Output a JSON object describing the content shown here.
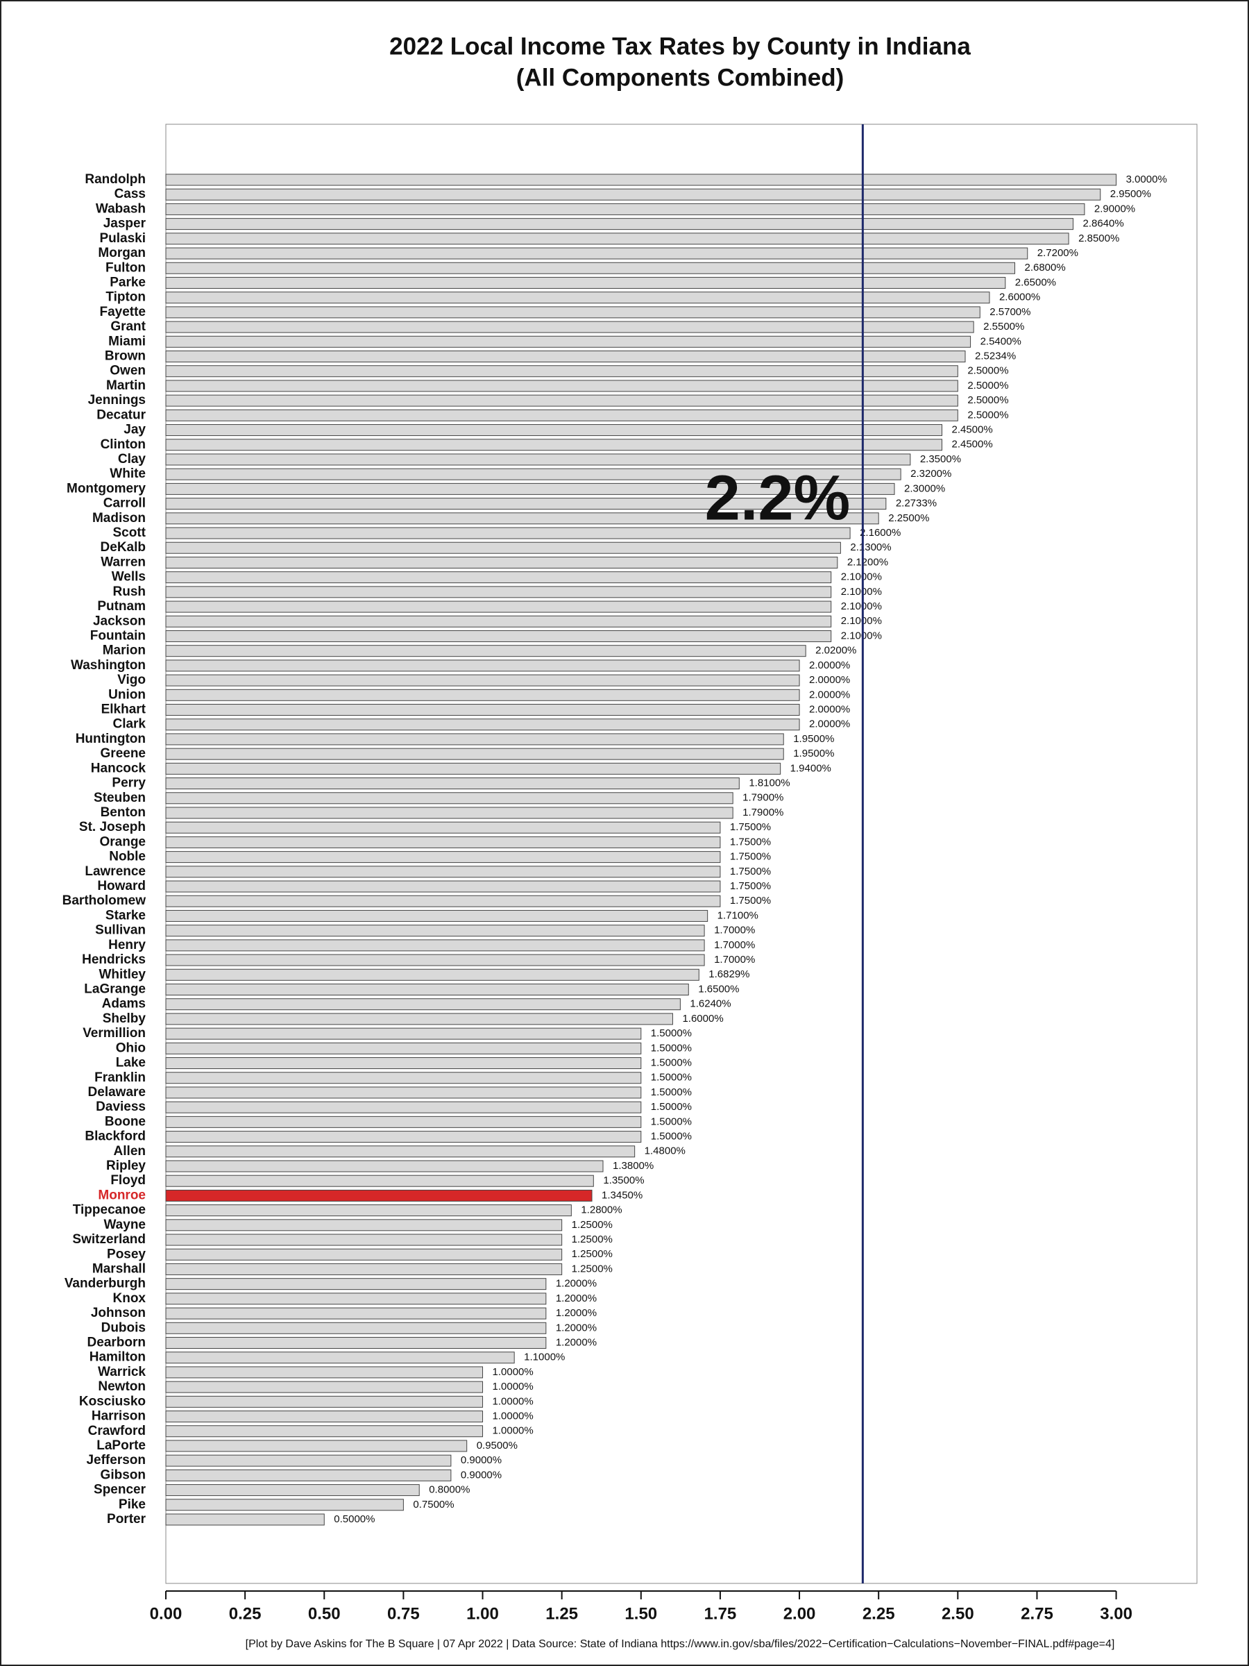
{
  "chart_data": {
    "type": "barh",
    "title": "2022 Local Income Tax Rates by County in Indiana",
    "subtitle": "(All Components Combined)",
    "footer": "[Plot by Dave Askins for The B Square | 07 Apr 2022 | Data Source: State of Indiana https://www.in.gov/sba/files/2022−Certification−Calculations−November−FINAL.pdf#page=4]",
    "categories": [
      "Randolph",
      "Cass",
      "Wabash",
      "Jasper",
      "Pulaski",
      "Morgan",
      "Fulton",
      "Parke",
      "Tipton",
      "Fayette",
      "Grant",
      "Miami",
      "Brown",
      "Owen",
      "Martin",
      "Jennings",
      "Decatur",
      "Jay",
      "Clinton",
      "Clay",
      "White",
      "Montgomery",
      "Carroll",
      "Madison",
      "Scott",
      "DeKalb",
      "Warren",
      "Wells",
      "Rush",
      "Putnam",
      "Jackson",
      "Fountain",
      "Marion",
      "Washington",
      "Vigo",
      "Union",
      "Elkhart",
      "Clark",
      "Huntington",
      "Greene",
      "Hancock",
      "Perry",
      "Steuben",
      "Benton",
      "St. Joseph",
      "Orange",
      "Noble",
      "Lawrence",
      "Howard",
      "Bartholomew",
      "Starke",
      "Sullivan",
      "Henry",
      "Hendricks",
      "Whitley",
      "LaGrange",
      "Adams",
      "Shelby",
      "Vermillion",
      "Ohio",
      "Lake",
      "Franklin",
      "Delaware",
      "Daviess",
      "Boone",
      "Blackford",
      "Allen",
      "Ripley",
      "Floyd",
      "Monroe",
      "Tippecanoe",
      "Wayne",
      "Switzerland",
      "Posey",
      "Marshall",
      "Vanderburgh",
      "Knox",
      "Johnson",
      "Dubois",
      "Dearborn",
      "Hamilton",
      "Warrick",
      "Newton",
      "Kosciusko",
      "Harrison",
      "Crawford",
      "LaPorte",
      "Jefferson",
      "Gibson",
      "Spencer",
      "Pike",
      "Porter"
    ],
    "values": [
      3.0,
      2.95,
      2.9,
      2.864,
      2.85,
      2.72,
      2.68,
      2.65,
      2.6,
      2.57,
      2.55,
      2.54,
      2.5234,
      2.5,
      2.5,
      2.5,
      2.5,
      2.45,
      2.45,
      2.35,
      2.32,
      2.3,
      2.2733,
      2.25,
      2.16,
      2.13,
      2.12,
      2.1,
      2.1,
      2.1,
      2.1,
      2.1,
      2.02,
      2.0,
      2.0,
      2.0,
      2.0,
      2.0,
      1.95,
      1.95,
      1.94,
      1.81,
      1.79,
      1.79,
      1.75,
      1.75,
      1.75,
      1.75,
      1.75,
      1.75,
      1.71,
      1.7,
      1.7,
      1.7,
      1.6829,
      1.65,
      1.624,
      1.6,
      1.5,
      1.5,
      1.5,
      1.5,
      1.5,
      1.5,
      1.5,
      1.5,
      1.48,
      1.38,
      1.35,
      1.345,
      1.28,
      1.25,
      1.25,
      1.25,
      1.25,
      1.2,
      1.2,
      1.2,
      1.2,
      1.2,
      1.1,
      1.0,
      1.0,
      1.0,
      1.0,
      1.0,
      0.95,
      0.9,
      0.9,
      0.8,
      0.75,
      0.5
    ],
    "value_labels": [
      "3.0000%",
      "2.9500%",
      "2.9000%",
      "2.8640%",
      "2.8500%",
      "2.7200%",
      "2.6800%",
      "2.6500%",
      "2.6000%",
      "2.5700%",
      "2.5500%",
      "2.5400%",
      "2.5234%",
      "2.5000%",
      "2.5000%",
      "2.5000%",
      "2.5000%",
      "2.4500%",
      "2.4500%",
      "2.3500%",
      "2.3200%",
      "2.3000%",
      "2.2733%",
      "2.2500%",
      "2.1600%",
      "2.1300%",
      "2.1200%",
      "2.1000%",
      "2.1000%",
      "2.1000%",
      "2.1000%",
      "2.1000%",
      "2.0200%",
      "2.0000%",
      "2.0000%",
      "2.0000%",
      "2.0000%",
      "2.0000%",
      "1.9500%",
      "1.9500%",
      "1.9400%",
      "1.8100%",
      "1.7900%",
      "1.7900%",
      "1.7500%",
      "1.7500%",
      "1.7500%",
      "1.7500%",
      "1.7500%",
      "1.7500%",
      "1.7100%",
      "1.7000%",
      "1.7000%",
      "1.7000%",
      "1.6829%",
      "1.6500%",
      "1.6240%",
      "1.6000%",
      "1.5000%",
      "1.5000%",
      "1.5000%",
      "1.5000%",
      "1.5000%",
      "1.5000%",
      "1.5000%",
      "1.5000%",
      "1.4800%",
      "1.3800%",
      "1.3500%",
      "1.3450%",
      "1.2800%",
      "1.2500%",
      "1.2500%",
      "1.2500%",
      "1.2500%",
      "1.2000%",
      "1.2000%",
      "1.2000%",
      "1.2000%",
      "1.2000%",
      "1.1000%",
      "1.0000%",
      "1.0000%",
      "1.0000%",
      "1.0000%",
      "1.0000%",
      "0.9500%",
      "0.9000%",
      "0.9000%",
      "0.8000%",
      "0.7500%",
      "0.5000%"
    ],
    "color": "#d9d9d9",
    "highlight": {
      "category": "Monroe",
      "color": "#d62728"
    },
    "reference_line": {
      "value": 2.2,
      "label": "2.2%",
      "color": "#1f2a6b"
    },
    "xlim": [
      0,
      3.255
    ],
    "xticks": [
      {
        "value": 0,
        "label": "0.00"
      },
      {
        "value": 0.25,
        "label": "0.25"
      },
      {
        "value": 0.5,
        "label": "0.50"
      },
      {
        "value": 0.75,
        "label": "0.75"
      },
      {
        "value": 1,
        "label": "1.00"
      },
      {
        "value": 1.25,
        "label": "1.25"
      },
      {
        "value": 1.5,
        "label": "1.50"
      },
      {
        "value": 1.75,
        "label": "1.75"
      },
      {
        "value": 2,
        "label": "2.00"
      },
      {
        "value": 2.25,
        "label": "2.25"
      },
      {
        "value": 2.5,
        "label": "2.50"
      },
      {
        "value": 2.75,
        "label": "2.75"
      },
      {
        "value": 3,
        "label": "3.00"
      }
    ]
  }
}
